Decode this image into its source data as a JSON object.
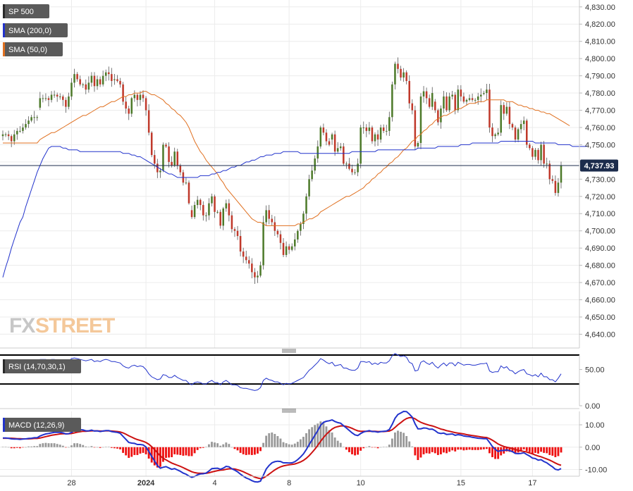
{
  "chart_data": [
    {
      "type": "candlestick",
      "title": "SP 500",
      "ylim": [
        4632,
        4834
      ],
      "y_ticks": [
        4640,
        4650,
        4660,
        4670,
        4680,
        4690,
        4700,
        4710,
        4720,
        4730,
        4740,
        4750,
        4760,
        4770,
        4780,
        4790,
        4800,
        4810,
        4820,
        4830
      ],
      "y_tick_labels": [
        "4,640.00",
        "4,650.00",
        "4,660.00",
        "4,670.00",
        "4,680.00",
        "4,690.00",
        "4,700.00",
        "4,710.00",
        "4,720.00",
        "4,730.00",
        "4,740.00",
        "4,750.00",
        "4,760.00",
        "4,770.00",
        "4,780.00",
        "4,790.00",
        "4,800.00",
        "4,810.00",
        "4,820.00",
        "4,830.00"
      ],
      "last_price": 4737.93,
      "last_price_label": "4,737.93",
      "grid": true,
      "legend_position": "top-left",
      "legend": [
        {
          "label": "SP 500",
          "color": "#5a5a5a"
        },
        {
          "label": "SMA (200,0)",
          "color": "#2233cc"
        },
        {
          "label": "SMA (50,0)",
          "color": "#e07020"
        }
      ],
      "x_labels": [
        {
          "label": "28",
          "index": 24,
          "bold": false
        },
        {
          "label": "2024",
          "index": 50,
          "bold": true
        },
        {
          "label": "4",
          "index": 74,
          "bold": false
        },
        {
          "label": "8",
          "index": 100,
          "bold": false
        },
        {
          "label": "10",
          "index": 125,
          "bold": false
        },
        {
          "label": "15",
          "index": 160,
          "bold": false
        },
        {
          "label": "17",
          "index": 185,
          "bold": false
        }
      ],
      "gap_indices": [
        13,
        39,
        66,
        115,
        151,
        168
      ],
      "close": [
        4756,
        4756,
        4755,
        4752,
        4756,
        4758,
        4758,
        4760,
        4762,
        4764,
        4766,
        4766,
        4766,
        4777,
        4777,
        4777,
        4776,
        4779,
        4779,
        4778,
        4778,
        4776,
        4772,
        4778,
        4786,
        4791,
        4788,
        4785,
        4785,
        4782,
        4786,
        4790,
        4784,
        4788,
        4785,
        4790,
        4792,
        4791,
        4787,
        4788,
        4787,
        4785,
        4775,
        4771,
        4768,
        4777,
        4779,
        4776,
        4779,
        4777,
        4770,
        4757,
        4744,
        4739,
        4734,
        4735,
        4750,
        4749,
        4740,
        4738,
        4746,
        4738,
        4734,
        4728,
        4728,
        4716,
        4708,
        4715,
        4718,
        4715,
        4709,
        4709,
        4716,
        4720,
        4711,
        4711,
        4703,
        4713,
        4716,
        4709,
        4701,
        4700,
        4697,
        4688,
        4685,
        4683,
        4681,
        4676,
        4673,
        4674,
        4680,
        4705,
        4712,
        4707,
        4705,
        4700,
        4698,
        4693,
        4686,
        4691,
        4689,
        4691,
        4695,
        4700,
        4704,
        4710,
        4720,
        4730,
        4735,
        4742,
        4749,
        4760,
        4757,
        4752,
        4750,
        4756,
        4746,
        4748,
        4749,
        4739,
        4739,
        4736,
        4734,
        4734,
        4739,
        4760,
        4760,
        4758,
        4760,
        4752,
        4756,
        4753,
        4760,
        4758,
        4758,
        4766,
        4785,
        4797,
        4794,
        4789,
        4792,
        4787,
        4774,
        4770,
        4749,
        4751,
        4778,
        4781,
        4777,
        4772,
        4780,
        4770,
        4763,
        4771,
        4778,
        4770,
        4778,
        4779,
        4770,
        4782,
        4778,
        4775,
        4776,
        4777,
        4776,
        4776,
        4778,
        4779,
        4780,
        4782,
        4760,
        4755,
        4756,
        4757,
        4773,
        4768,
        4772,
        4762,
        4760,
        4753,
        4759,
        4762,
        4764,
        4750,
        4748,
        4743,
        4747,
        4741,
        4750,
        4739,
        4739,
        4730,
        4729,
        4722,
        4728,
        4738
      ],
      "sma200": [
        4673,
        4679,
        4684,
        4690,
        4695,
        4700,
        4705,
        4708,
        4714,
        4719,
        4724,
        4729,
        4734,
        4738,
        4742,
        4745,
        4748,
        4749,
        4749,
        4749,
        4749,
        4748,
        4748,
        4747,
        4747,
        4747,
        4747,
        4746,
        4746,
        4746,
        4746,
        4746,
        4746,
        4746,
        4746,
        4746,
        4746,
        4746,
        4746,
        4746,
        4746,
        4746,
        4745,
        4745,
        4745,
        4744,
        4744,
        4743,
        4743,
        4742,
        4741,
        4740,
        4739,
        4738,
        4737,
        4736,
        4735,
        4734,
        4733,
        4733,
        4732,
        4731,
        4731,
        4731,
        4731,
        4731,
        4731,
        4731,
        4731,
        4732,
        4732,
        4732,
        4732,
        4733,
        4733,
        4734,
        4734,
        4735,
        4735,
        4736,
        4737,
        4737,
        4738,
        4738,
        4739,
        4740,
        4740,
        4741,
        4741,
        4742,
        4743,
        4743,
        4744,
        4744,
        4744,
        4745,
        4745,
        4745,
        4746,
        4746,
        4746,
        4746,
        4746,
        4746,
        4745,
        4745,
        4745,
        4745,
        4745,
        4745,
        4745,
        4745,
        4745,
        4745,
        4745,
        4745,
        4745,
        4745,
        4745,
        4745,
        4745,
        4745,
        4746,
        4746,
        4746,
        4746,
        4746,
        4746,
        4746,
        4746,
        4746,
        4747,
        4747,
        4747,
        4747,
        4747,
        4747,
        4747,
        4747,
        4747,
        4747,
        4747,
        4747,
        4747,
        4747,
        4748,
        4748,
        4748,
        4748,
        4748,
        4748,
        4748,
        4749,
        4749,
        4749,
        4749,
        4749,
        4749,
        4749,
        4749,
        4750,
        4750,
        4750,
        4750,
        4751,
        4751,
        4751,
        4751,
        4751,
        4751,
        4751,
        4751,
        4751,
        4751,
        4752,
        4752,
        4752,
        4752,
        4752,
        4752,
        4752,
        4752,
        4752,
        4752,
        4752,
        4752,
        4751,
        4751,
        4751,
        4751,
        4751,
        4751,
        4751,
        4751,
        4750,
        4750,
        4750,
        4750,
        4750,
        4749,
        4749,
        4749,
        4749,
        4749,
        4749
      ],
      "sma50": [
        4751,
        4751,
        4751,
        4751,
        4751,
        4751,
        4751,
        4751,
        4751,
        4751,
        4751,
        4751,
        4751,
        4753,
        4754,
        4755,
        4756,
        4757,
        4757,
        4758,
        4759,
        4760,
        4761,
        4762,
        4763,
        4764,
        4765,
        4766,
        4767,
        4767,
        4768,
        4769,
        4770,
        4771,
        4772,
        4772,
        4773,
        4774,
        4775,
        4775,
        4776,
        4777,
        4778,
        4778,
        4779,
        4779,
        4780,
        4780,
        4780,
        4781,
        4781,
        4780,
        4779,
        4779,
        4778,
        4777,
        4776,
        4774,
        4773,
        4771,
        4770,
        4768,
        4767,
        4765,
        4763,
        4760,
        4756,
        4752,
        4749,
        4746,
        4744,
        4741,
        4739,
        4737,
        4735,
        4733,
        4730,
        4728,
        4725,
        4723,
        4721,
        4719,
        4717,
        4715,
        4713,
        4711,
        4709,
        4707,
        4706,
        4705,
        4705,
        4704,
        4703,
        4703,
        4703,
        4703,
        4703,
        4703,
        4703,
        4703,
        4703,
        4703,
        4703,
        4704,
        4704,
        4705,
        4706,
        4707,
        4707,
        4708,
        4709,
        4711,
        4712,
        4713,
        4714,
        4715,
        4716,
        4717,
        4718,
        4719,
        4720,
        4720,
        4721,
        4722,
        4723,
        4724,
        4725,
        4727,
        4728,
        4730,
        4731,
        4733,
        4734,
        4736,
        4737,
        4739,
        4740,
        4742,
        4743,
        4745,
        4747,
        4748,
        4750,
        4752,
        4753,
        4755,
        4756,
        4758,
        4759,
        4761,
        4762,
        4764,
        4765,
        4766,
        4767,
        4767,
        4768,
        4769,
        4770,
        4771,
        4771,
        4772,
        4773,
        4774,
        4774,
        4774,
        4775,
        4775,
        4775,
        4776,
        4776,
        4776,
        4776,
        4776,
        4776,
        4776,
        4775,
        4775,
        4775,
        4774,
        4773,
        4773,
        4772,
        4772,
        4771,
        4771,
        4770,
        4770,
        4769,
        4769,
        4768,
        4768,
        4767,
        4766,
        4765,
        4764,
        4763,
        4762,
        4761
      ]
    },
    {
      "type": "line",
      "title": "RSI (14,70,30,1)",
      "ylim": [
        0,
        70
      ],
      "y_ticks": [
        0,
        50
      ],
      "y_tick_labels": [
        "0.00",
        "50.00"
      ],
      "levels": [
        70,
        30
      ],
      "series": [
        {
          "name": "RSI (14,70,30,1)",
          "color": "#2233cc"
        }
      ],
      "values": [
        55,
        55,
        54,
        52,
        54,
        56,
        56,
        57,
        58,
        59,
        60,
        60,
        60,
        64,
        64,
        64,
        63,
        64,
        64,
        63,
        63,
        62,
        60,
        62,
        65,
        66,
        65,
        64,
        63,
        62,
        63,
        64,
        61,
        62,
        61,
        63,
        64,
        63,
        61,
        61,
        60,
        59,
        55,
        53,
        52,
        55,
        56,
        54,
        55,
        54,
        50,
        44,
        40,
        38,
        36,
        37,
        43,
        42,
        39,
        39,
        42,
        39,
        37,
        35,
        35,
        31,
        29,
        32,
        33,
        32,
        30,
        30,
        33,
        35,
        32,
        32,
        29,
        33,
        35,
        32,
        29,
        29,
        28,
        25,
        24,
        24,
        23,
        22,
        21,
        22,
        25,
        35,
        38,
        36,
        35,
        33,
        33,
        31,
        29,
        31,
        30,
        31,
        33,
        35,
        37,
        39,
        44,
        49,
        52,
        56,
        60,
        65,
        63,
        60,
        58,
        60,
        55,
        56,
        57,
        52,
        52,
        50,
        49,
        49,
        52,
        61,
        61,
        60,
        61,
        57,
        59,
        57,
        60,
        59,
        59,
        62,
        69,
        72,
        70,
        68,
        69,
        67,
        60,
        58,
        48,
        49,
        60,
        62,
        59,
        57,
        60,
        55,
        52,
        56,
        59,
        55,
        59,
        59,
        55,
        60,
        58,
        56,
        57,
        57,
        56,
        56,
        57,
        58,
        58,
        59,
        48,
        46,
        47,
        47,
        55,
        52,
        54,
        49,
        48,
        44,
        47,
        49,
        50,
        44,
        43,
        41,
        43,
        40,
        45,
        40,
        40,
        36,
        36,
        33,
        38,
        44
      ]
    },
    {
      "type": "bar",
      "title": "MACD (12,26,9)",
      "ylim": [
        -13,
        16
      ],
      "y_ticks": [
        10,
        0,
        -10
      ],
      "y_tick_labels": [
        "10.00",
        "0.00",
        "-10.00"
      ],
      "series": [
        {
          "name": "MACD",
          "color": "#2233cc"
        },
        {
          "name": "Signal",
          "color": "#cc1111"
        },
        {
          "name": "Histogram",
          "colors": {
            "positive": "#999999",
            "negative": "#ee1111"
          }
        }
      ],
      "macd": [
        4.1,
        4.1,
        4.0,
        3.7,
        3.6,
        3.6,
        3.5,
        3.6,
        3.7,
        3.9,
        4.0,
        4.2,
        4.2,
        5.0,
        5.5,
        5.9,
        6.1,
        6.4,
        6.6,
        6.6,
        6.6,
        6.4,
        5.9,
        6.0,
        6.6,
        7.5,
        7.8,
        7.8,
        7.7,
        7.3,
        7.3,
        7.6,
        7.2,
        7.3,
        7.0,
        7.2,
        7.4,
        7.4,
        7.0,
        6.8,
        6.6,
        6.2,
        4.8,
        3.5,
        2.1,
        1.8,
        1.7,
        1.2,
        1.2,
        1.0,
        0.1,
        -1.9,
        -4.1,
        -6.2,
        -8.2,
        -9.4,
        -9.0,
        -8.7,
        -9.3,
        -9.9,
        -9.6,
        -10.2,
        -10.8,
        -11.6,
        -12.1,
        -12.9,
        -13.5,
        -13.1,
        -12.4,
        -12.0,
        -11.9,
        -11.6,
        -10.7,
        -9.6,
        -9.5,
        -9.4,
        -9.9,
        -9.4,
        -8.6,
        -8.8,
        -9.7,
        -10.3,
        -11.0,
        -12.1,
        -13.0,
        -13.8,
        -14.3,
        -15.0,
        -15.5,
        -15.6,
        -15.2,
        -12.6,
        -9.8,
        -8.2,
        -7.0,
        -6.5,
        -6.3,
        -6.4,
        -7.0,
        -7.0,
        -7.1,
        -7.0,
        -6.5,
        -5.6,
        -4.4,
        -3.0,
        -1.1,
        1.2,
        3.2,
        5.3,
        7.4,
        9.8,
        11.1,
        11.6,
        11.8,
        12.2,
        11.5,
        11.0,
        10.7,
        9.6,
        8.6,
        7.5,
        6.4,
        5.5,
        5.2,
        6.1,
        6.8,
        7.1,
        7.4,
        7.0,
        7.0,
        6.7,
        7.0,
        7.1,
        7.2,
        7.9,
        10.2,
        12.9,
        14.6,
        15.3,
        16.0,
        15.9,
        14.8,
        13.4,
        10.4,
        8.2,
        8.2,
        8.6,
        8.5,
        8.0,
        8.1,
        7.4,
        6.4,
        6.1,
        6.3,
        5.7,
        5.8,
        5.9,
        5.3,
        5.6,
        5.4,
        5.0,
        4.8,
        4.7,
        4.4,
        4.2,
        4.0,
        3.9,
        3.8,
        3.8,
        2.1,
        0.3,
        -1.0,
        -1.9,
        -1.5,
        -1.5,
        -1.2,
        -1.6,
        -2.0,
        -2.8,
        -2.9,
        -2.8,
        -2.5,
        -3.3,
        -4.0,
        -4.9,
        -5.1,
        -5.8,
        -5.6,
        -6.4,
        -7.0,
        -8.0,
        -8.8,
        -9.9,
        -10.2,
        -9.6
      ],
      "signal": [
        4.0,
        4.0,
        4.0,
        4.0,
        3.9,
        3.8,
        3.8,
        3.7,
        3.7,
        3.7,
        3.8,
        3.9,
        3.9,
        4.1,
        4.4,
        4.7,
        5.0,
        5.3,
        5.5,
        5.7,
        5.9,
        6.0,
        6.0,
        6.0,
        6.1,
        6.4,
        6.7,
        6.9,
        7.1,
        7.1,
        7.2,
        7.3,
        7.3,
        7.3,
        7.2,
        7.2,
        7.3,
        7.3,
        7.2,
        7.1,
        7.0,
        6.8,
        6.4,
        5.8,
        5.1,
        4.5,
        3.9,
        3.4,
        3.0,
        2.6,
        2.1,
        1.3,
        0.2,
        -1.1,
        -2.5,
        -3.9,
        -4.9,
        -5.7,
        -6.4,
        -7.1,
        -7.6,
        -8.1,
        -8.6,
        -9.2,
        -9.8,
        -10.4,
        -11.0,
        -11.4,
        -11.6,
        -11.7,
        -11.7,
        -11.7,
        -11.5,
        -11.1,
        -10.8,
        -10.5,
        -10.3,
        -10.2,
        -9.9,
        -9.7,
        -9.7,
        -9.8,
        -10.1,
        -10.5,
        -11.0,
        -11.6,
        -12.2,
        -12.8,
        -13.4,
        -13.8,
        -14.1,
        -13.8,
        -13.0,
        -12.1,
        -11.1,
        -10.2,
        -9.4,
        -8.8,
        -8.4,
        -8.1,
        -7.9,
        -7.7,
        -7.5,
        -7.1,
        -6.6,
        -5.9,
        -5.0,
        -3.8,
        -2.4,
        -0.9,
        0.8,
        2.6,
        4.3,
        5.8,
        7.0,
        8.1,
        8.8,
        9.2,
        9.5,
        9.5,
        9.3,
        8.9,
        8.4,
        7.8,
        7.3,
        7.1,
        7.1,
        7.1,
        7.1,
        7.1,
        7.1,
        7.0,
        7.0,
        7.0,
        7.1,
        7.2,
        7.8,
        8.8,
        10.0,
        11.0,
        12.0,
        12.8,
        13.2,
        13.2,
        12.7,
        11.8,
        11.1,
        10.6,
        10.2,
        9.8,
        9.5,
        9.1,
        8.6,
        8.1,
        7.8,
        7.4,
        7.1,
        6.8,
        6.5,
        6.3,
        6.1,
        5.9,
        5.6,
        5.4,
        5.2,
        5.0,
        4.8,
        4.6,
        4.4,
        4.3,
        3.8,
        3.1,
        2.3,
        1.4,
        0.8,
        0.3,
        0.0,
        -0.3,
        -0.6,
        -1.1,
        -1.4,
        -1.7,
        -1.9,
        -2.2,
        -2.6,
        -3.0,
        -3.5,
        -4.0,
        -4.3,
        -4.8,
        -5.3,
        -5.8,
        -6.4,
        -7.1,
        -7.7,
        -8.1
      ]
    }
  ]
}
